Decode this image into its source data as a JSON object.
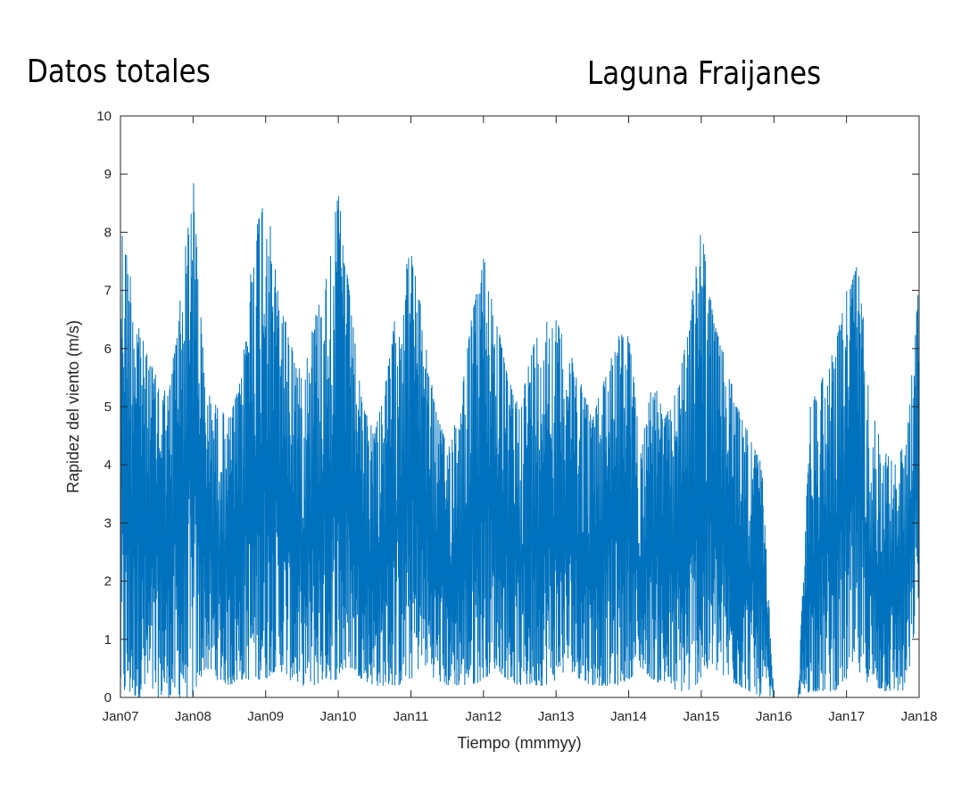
{
  "annotations": {
    "left": "Datos totales",
    "right": "Laguna Fraijanes"
  },
  "chart_data": {
    "type": "line",
    "title": "",
    "xlabel": "Tiempo (mmmyy)",
    "ylabel": "Rapidez del viento (m/s)",
    "xlim": [
      "2007-01",
      "2018-01"
    ],
    "ylim": [
      0,
      10
    ],
    "x_ticks": [
      "Jan07",
      "Jan08",
      "Jan09",
      "Jan10",
      "Jan11",
      "Jan12",
      "Jan13",
      "Jan14",
      "Jan15",
      "Jan16",
      "Jan17",
      "Jan18"
    ],
    "y_ticks": [
      "0",
      "1",
      "2",
      "3",
      "4",
      "5",
      "6",
      "7",
      "8",
      "9",
      "10"
    ],
    "grid": false,
    "legend": "none",
    "line_color": "#0072BD",
    "series": [
      {
        "frequency": "dense time series (monthly envelope shown)",
        "months": [
          "2007-01",
          "2007-03",
          "2007-05",
          "2007-07",
          "2007-09",
          "2007-11",
          "2008-01",
          "2008-03",
          "2008-05",
          "2008-07",
          "2008-09",
          "2008-11",
          "2009-01",
          "2009-03",
          "2009-05",
          "2009-07",
          "2009-09",
          "2009-11",
          "2010-01",
          "2010-03",
          "2010-05",
          "2010-07",
          "2010-09",
          "2010-11",
          "2011-01",
          "2011-03",
          "2011-05",
          "2011-07",
          "2011-09",
          "2011-11",
          "2012-01",
          "2012-03",
          "2012-05",
          "2012-07",
          "2012-09",
          "2012-11",
          "2013-01",
          "2013-03",
          "2013-05",
          "2013-07",
          "2013-09",
          "2013-11",
          "2014-01",
          "2014-03",
          "2014-05",
          "2014-07",
          "2014-09",
          "2014-11",
          "2015-01",
          "2015-03",
          "2015-05",
          "2015-07",
          "2015-09",
          "2015-11",
          "2016-01",
          "2016-03",
          "2016-05",
          "2016-07",
          "2016-09",
          "2016-11",
          "2017-01",
          "2017-03",
          "2017-05",
          "2017-07",
          "2017-09",
          "2017-11",
          "2018-01"
        ],
        "max": [
          8.2,
          7.1,
          6.0,
          5.5,
          5.2,
          7.0,
          9.0,
          5.3,
          5.0,
          4.8,
          5.5,
          7.9,
          8.8,
          7.0,
          6.2,
          5.5,
          6.5,
          7.2,
          8.7,
          6.8,
          5.0,
          4.6,
          5.5,
          7.0,
          7.7,
          6.5,
          5.0,
          4.3,
          5.0,
          6.5,
          7.6,
          6.6,
          5.5,
          5.0,
          6.0,
          6.5,
          6.5,
          6.0,
          5.5,
          4.8,
          5.5,
          6.2,
          6.3,
          4.3,
          5.5,
          4.8,
          5.3,
          6.5,
          8.1,
          6.5,
          5.8,
          5.0,
          4.5,
          4.0,
          0.0,
          0.0,
          0.0,
          5.0,
          5.5,
          6.0,
          7.0,
          7.5,
          5.0,
          4.3,
          4.0,
          4.5,
          7.2
        ],
        "min": [
          0.0,
          0.0,
          0.0,
          0.0,
          0.0,
          0.0,
          0.0,
          0.5,
          0.3,
          0.2,
          0.3,
          0.3,
          0.3,
          0.5,
          0.3,
          0.2,
          0.2,
          0.3,
          0.3,
          0.5,
          0.3,
          0.2,
          0.2,
          0.2,
          0.3,
          0.6,
          0.3,
          0.2,
          0.2,
          0.2,
          0.3,
          0.5,
          0.3,
          0.2,
          0.2,
          0.2,
          0.3,
          0.5,
          0.3,
          0.2,
          0.2,
          0.2,
          0.3,
          0.5,
          0.3,
          0.2,
          0.1,
          0.1,
          0.3,
          0.5,
          0.3,
          0.2,
          0.1,
          0.0,
          0.0,
          0.0,
          0.0,
          0.1,
          0.1,
          0.1,
          0.3,
          0.4,
          0.2,
          0.1,
          0.1,
          0.1,
          1.8
        ]
      }
    ]
  }
}
